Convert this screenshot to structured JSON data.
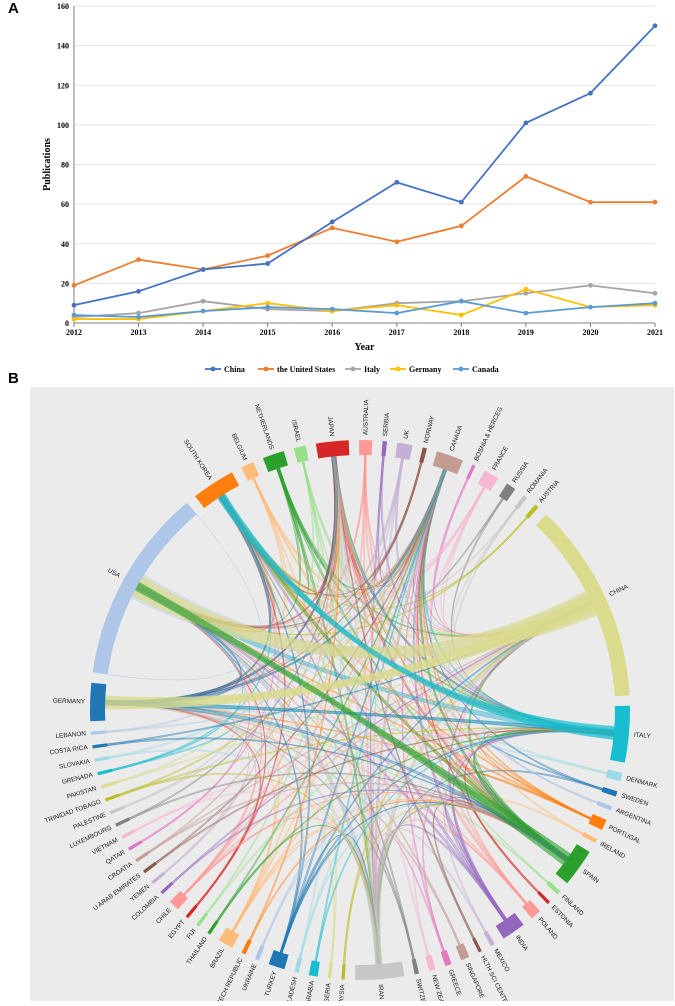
{
  "panel_a_label": "A",
  "panel_b_label": "B",
  "chart_data": [
    {
      "type": "line",
      "title": "",
      "xlabel": "Year",
      "ylabel": "Publications",
      "ylim": [
        0,
        160
      ],
      "yticks": [
        0,
        20,
        40,
        60,
        80,
        100,
        120,
        140,
        160
      ],
      "x": [
        2012,
        2013,
        2014,
        2015,
        2016,
        2017,
        2018,
        2019,
        2020,
        2021
      ],
      "legend_position": "bottom",
      "series": [
        {
          "name": "China",
          "color": "#4472c4",
          "values": [
            9,
            16,
            27,
            30,
            51,
            71,
            61,
            101,
            116,
            150
          ]
        },
        {
          "name": "the United States",
          "color": "#ed7d31",
          "values": [
            19,
            32,
            27,
            34,
            48,
            41,
            49,
            74,
            61,
            61
          ]
        },
        {
          "name": "Italy",
          "color": "#a5a5a5",
          "values": [
            3,
            5,
            11,
            7,
            6,
            10,
            11,
            15,
            19,
            15
          ]
        },
        {
          "name": "Germany",
          "color": "#ffc000",
          "values": [
            2,
            2,
            6,
            10,
            6,
            9,
            4,
            17,
            8,
            9
          ]
        },
        {
          "name": "Canada",
          "color": "#5b9bd5",
          "values": [
            4,
            3,
            6,
            8,
            7,
            5,
            11,
            5,
            8,
            10
          ]
        }
      ]
    },
    {
      "type": "chord",
      "title": "",
      "segments": [
        {
          "name": "USA",
          "weight": 180,
          "color": "#aec7e8"
        },
        {
          "name": "SOUTH KOREA",
          "weight": 40,
          "color": "#ff7f0e"
        },
        {
          "name": "BELGIUM",
          "weight": 12,
          "color": "#ffbb78"
        },
        {
          "name": "NETHERLANDS",
          "weight": 20,
          "color": "#2ca02c"
        },
        {
          "name": "ISRAEL",
          "weight": 11,
          "color": "#98df8a"
        },
        {
          "name": "JAPAN",
          "weight": 30,
          "color": "#d62728"
        },
        {
          "name": "AUSTRALIA",
          "weight": 12,
          "color": "#ff9896"
        },
        {
          "name": "SERBIA",
          "weight": 4,
          "color": "#9467bd"
        },
        {
          "name": "UK",
          "weight": 14,
          "color": "#c5b0d5"
        },
        {
          "name": "NORWAY",
          "weight": 4,
          "color": "#8c564b"
        },
        {
          "name": "CANADA",
          "weight": 25,
          "color": "#c49c94"
        },
        {
          "name": "BOSNIA & HERCEG",
          "weight": 3,
          "color": "#e377c2"
        },
        {
          "name": "FRANCE",
          "weight": 14,
          "color": "#f7b6d2"
        },
        {
          "name": "RUSSIA",
          "weight": 9,
          "color": "#7f7f7f"
        },
        {
          "name": "ROMANIA",
          "weight": 4,
          "color": "#c7c7c7"
        },
        {
          "name": "AUSTRIA",
          "weight": 4,
          "color": "#bcbd22"
        },
        {
          "name": "CHINA",
          "weight": 185,
          "color": "#dbdb8d"
        },
        {
          "name": "ITALY",
          "weight": 52,
          "color": "#17becf"
        },
        {
          "name": "DENMARK",
          "weight": 8,
          "color": "#9edae5"
        },
        {
          "name": "SWEDEN",
          "weight": 5,
          "color": "#1f77b4"
        },
        {
          "name": "ARGENTINA",
          "weight": 4,
          "color": "#aec7e8"
        },
        {
          "name": "PORTUGAL",
          "weight": 10,
          "color": "#ff7f0e"
        },
        {
          "name": "IRELAND",
          "weight": 4,
          "color": "#ffbb78"
        },
        {
          "name": "SPAIN",
          "weight": 35,
          "color": "#2ca02c"
        },
        {
          "name": "FINLAND",
          "weight": 4,
          "color": "#98df8a"
        },
        {
          "name": "ESTONIA",
          "weight": 3,
          "color": "#d62728"
        },
        {
          "name": "POLAND",
          "weight": 10,
          "color": "#ff9896"
        },
        {
          "name": "INDIA",
          "weight": 22,
          "color": "#9467bd"
        },
        {
          "name": "MEXICO",
          "weight": 4,
          "color": "#c5b0d5"
        },
        {
          "name": "HLTH SCI CENTEL",
          "weight": 3,
          "color": "#8c564b"
        },
        {
          "name": "SINGAPORE",
          "weight": 8,
          "color": "#c49c94"
        },
        {
          "name": "GREECE",
          "weight": 6,
          "color": "#e377c2"
        },
        {
          "name": "NEW ZEALAND",
          "weight": 6,
          "color": "#f7b6d2"
        },
        {
          "name": "SWITZERLAND",
          "weight": 4,
          "color": "#7f7f7f"
        },
        {
          "name": "IRAN",
          "weight": 45,
          "color": "#c7c7c7"
        },
        {
          "name": "MALAYSIA",
          "weight": 3,
          "color": "#bcbd22"
        },
        {
          "name": "NIGERIA",
          "weight": 3,
          "color": "#dbdb8d"
        },
        {
          "name": "SAUDI ARABIA",
          "weight": 8,
          "color": "#17becf"
        },
        {
          "name": "BANGLADESH",
          "weight": 4,
          "color": "#9edae5"
        },
        {
          "name": "TURKEY",
          "weight": 15,
          "color": "#1f77b4"
        },
        {
          "name": "UKRAINE",
          "weight": 4,
          "color": "#aec7e8"
        },
        {
          "name": "CZECH REPUBLIC",
          "weight": 4,
          "color": "#ff7f0e"
        },
        {
          "name": "BRAZIL",
          "weight": 14,
          "color": "#ffbb78"
        },
        {
          "name": "THAILAND",
          "weight": 3,
          "color": "#2ca02c"
        },
        {
          "name": "FIJI",
          "weight": 3,
          "color": "#98df8a"
        },
        {
          "name": "EGYPT",
          "weight": 3,
          "color": "#d62728"
        },
        {
          "name": "CHILE",
          "weight": 10,
          "color": "#ff9896"
        },
        {
          "name": "COLOMBIA",
          "weight": 3,
          "color": "#9467bd"
        },
        {
          "name": "YEMEN",
          "weight": 3,
          "color": "#c5b0d5"
        },
        {
          "name": "U ARAB EMIRATES",
          "weight": 3,
          "color": "#8c564b"
        },
        {
          "name": "CROATIA",
          "weight": 3,
          "color": "#c49c94"
        },
        {
          "name": "QATAR",
          "weight": 3,
          "color": "#e377c2"
        },
        {
          "name": "VIETNAM",
          "weight": 3,
          "color": "#f7b6d2"
        },
        {
          "name": "LUXEMBOURG",
          "weight": 3,
          "color": "#7f7f7f"
        },
        {
          "name": "PALESTINE",
          "weight": 3,
          "color": "#c7c7c7"
        },
        {
          "name": "TRINIDAD TOBAGO",
          "weight": 3,
          "color": "#bcbd22"
        },
        {
          "name": "PAKISTAN",
          "weight": 3,
          "color": "#dbdb8d"
        },
        {
          "name": "GRENADA",
          "weight": 3,
          "color": "#17becf"
        },
        {
          "name": "SLOVAKIA",
          "weight": 3,
          "color": "#9edae5"
        },
        {
          "name": "COSTA RICA",
          "weight": 3,
          "color": "#1f77b4"
        },
        {
          "name": "LEBANON",
          "weight": 3,
          "color": "#aec7e8"
        },
        {
          "name": "GERMANY",
          "weight": 35,
          "color": "#1f77b4"
        }
      ]
    }
  ]
}
